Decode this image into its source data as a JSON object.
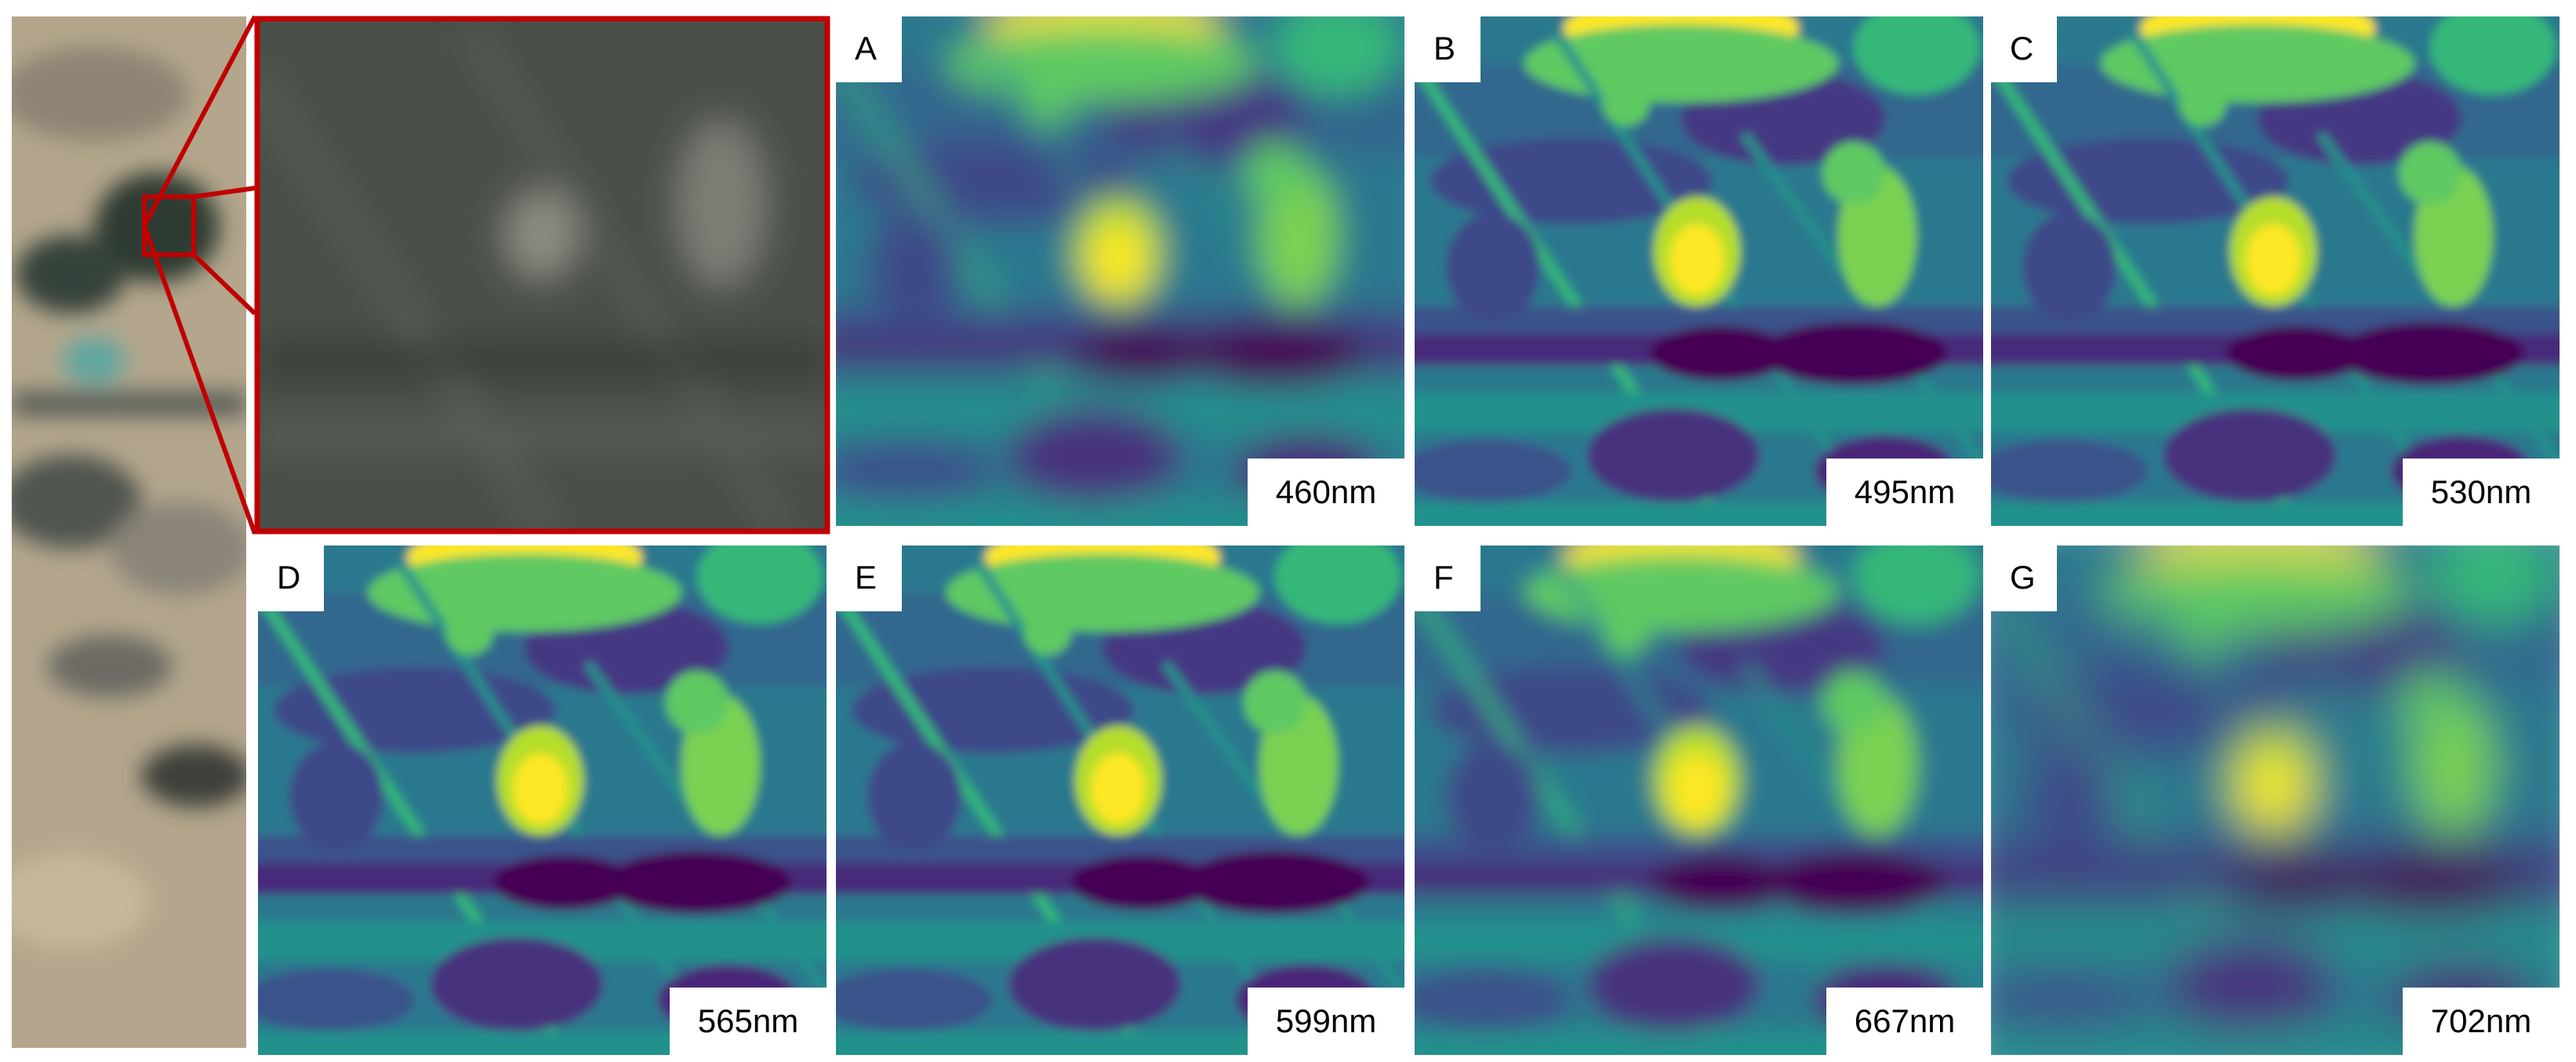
{
  "panels": [
    {
      "letter": "A",
      "label": "460nm"
    },
    {
      "letter": "B",
      "label": "495nm"
    },
    {
      "letter": "C",
      "label": "530nm"
    },
    {
      "letter": "D",
      "label": "565nm"
    },
    {
      "letter": "E",
      "label": "599nm"
    },
    {
      "letter": "F",
      "label": "667nm"
    },
    {
      "letter": "G",
      "label": "702nm"
    }
  ]
}
